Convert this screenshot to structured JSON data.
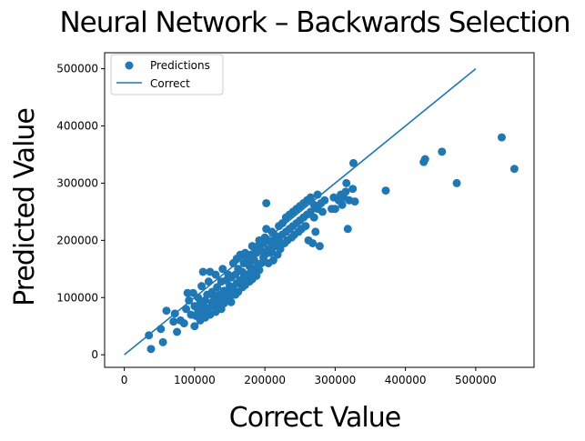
{
  "chart_data": {
    "type": "scatter",
    "title": "Neural Network – Backwards Selection",
    "xlabel": "Correct Value",
    "ylabel": "Predicted Value",
    "xlim": [
      -28000,
      583000
    ],
    "ylim": [
      -22000,
      528000
    ],
    "x_ticks": [
      0,
      100000,
      200000,
      300000,
      400000,
      500000
    ],
    "x_tick_labels": [
      "0",
      "100000",
      "200000",
      "300000",
      "400000",
      "500000"
    ],
    "y_ticks": [
      0,
      100000,
      200000,
      300000,
      400000,
      500000
    ],
    "y_tick_labels": [
      "0",
      "100000",
      "200000",
      "300000",
      "400000",
      "500000"
    ],
    "grid": false,
    "legend_position": "top-left",
    "colors": {
      "series": "#1f77b4"
    },
    "series": [
      {
        "name": "Predictions",
        "kind": "scatter",
        "points": [
          [
            35000,
            34000
          ],
          [
            38000,
            10000
          ],
          [
            52000,
            45000
          ],
          [
            55000,
            22000
          ],
          [
            60000,
            77000
          ],
          [
            70000,
            58000
          ],
          [
            72000,
            72000
          ],
          [
            75000,
            40000
          ],
          [
            80000,
            60000
          ],
          [
            85000,
            55000
          ],
          [
            88000,
            80000
          ],
          [
            90000,
            108000
          ],
          [
            92000,
            95000
          ],
          [
            95000,
            70000
          ],
          [
            98000,
            108000
          ],
          [
            100000,
            50000
          ],
          [
            100000,
            85000
          ],
          [
            102000,
            68000
          ],
          [
            105000,
            78000
          ],
          [
            105000,
            100000
          ],
          [
            108000,
            60000
          ],
          [
            108000,
            90000
          ],
          [
            110000,
            72000
          ],
          [
            110000,
            120000
          ],
          [
            112000,
            145000
          ],
          [
            112000,
            85000
          ],
          [
            115000,
            65000
          ],
          [
            115000,
            95000
          ],
          [
            118000,
            78000
          ],
          [
            118000,
            105000
          ],
          [
            120000,
            82000
          ],
          [
            120000,
            128000
          ],
          [
            122000,
            145000
          ],
          [
            122000,
            70000
          ],
          [
            125000,
            92000
          ],
          [
            125000,
            110000
          ],
          [
            128000,
            85000
          ],
          [
            128000,
            100000
          ],
          [
            130000,
            75000
          ],
          [
            130000,
            140000
          ],
          [
            132000,
            95000
          ],
          [
            132000,
            118000
          ],
          [
            135000,
            88000
          ],
          [
            135000,
            105000
          ],
          [
            138000,
            80000
          ],
          [
            138000,
            128000
          ],
          [
            140000,
            100000
          ],
          [
            140000,
            150000
          ],
          [
            142000,
            90000
          ],
          [
            142000,
            112000
          ],
          [
            145000,
            95000
          ],
          [
            145000,
            130000
          ],
          [
            148000,
            108000
          ],
          [
            148000,
            140000
          ],
          [
            150000,
            100000
          ],
          [
            150000,
            120000
          ],
          [
            152000,
            92000
          ],
          [
            152000,
            135000
          ],
          [
            155000,
            115000
          ],
          [
            155000,
            160000
          ],
          [
            158000,
            105000
          ],
          [
            158000,
            140000
          ],
          [
            160000,
            125000
          ],
          [
            160000,
            168000
          ],
          [
            162000,
            110000
          ],
          [
            162000,
            150000
          ],
          [
            165000,
            130000
          ],
          [
            165000,
            175000
          ],
          [
            168000,
            118000
          ],
          [
            168000,
            145000
          ],
          [
            170000,
            135000
          ],
          [
            170000,
            160000
          ],
          [
            172000,
            122000
          ],
          [
            172000,
            178000
          ],
          [
            175000,
            140000
          ],
          [
            175000,
            165000
          ],
          [
            178000,
            128000
          ],
          [
            178000,
            155000
          ],
          [
            180000,
            145000
          ],
          [
            180000,
            175000
          ],
          [
            182000,
            132000
          ],
          [
            182000,
            190000
          ],
          [
            185000,
            150000
          ],
          [
            185000,
            165000
          ],
          [
            188000,
            138000
          ],
          [
            188000,
            178000
          ],
          [
            190000,
            155000
          ],
          [
            190000,
            190000
          ],
          [
            192000,
            148000
          ],
          [
            192000,
            200000
          ],
          [
            195000,
            160000
          ],
          [
            195000,
            182000
          ],
          [
            198000,
            170000
          ],
          [
            198000,
            195000
          ],
          [
            200000,
            175000
          ],
          [
            200000,
            205000
          ],
          [
            202000,
            220000
          ],
          [
            202000,
            265000
          ],
          [
            205000,
            160000
          ],
          [
            205000,
            185000
          ],
          [
            208000,
            178000
          ],
          [
            208000,
            198000
          ],
          [
            210000,
            185000
          ],
          [
            210000,
            215000
          ],
          [
            212000,
            165000
          ],
          [
            212000,
            200000
          ],
          [
            215000,
            190000
          ],
          [
            215000,
            208000
          ],
          [
            218000,
            175000
          ],
          [
            218000,
            195000
          ],
          [
            220000,
            200000
          ],
          [
            220000,
            225000
          ],
          [
            222000,
            185000
          ],
          [
            225000,
            210000
          ],
          [
            225000,
            230000
          ],
          [
            228000,
            195000
          ],
          [
            230000,
            215000
          ],
          [
            230000,
            240000
          ],
          [
            232000,
            200000
          ],
          [
            235000,
            220000
          ],
          [
            235000,
            245000
          ],
          [
            238000,
            205000
          ],
          [
            240000,
            225000
          ],
          [
            240000,
            250000
          ],
          [
            242000,
            210000
          ],
          [
            245000,
            230000
          ],
          [
            245000,
            255000
          ],
          [
            248000,
            215000
          ],
          [
            250000,
            235000
          ],
          [
            250000,
            260000
          ],
          [
            252000,
            220000
          ],
          [
            255000,
            240000
          ],
          [
            255000,
            265000
          ],
          [
            258000,
            225000
          ],
          [
            260000,
            245000
          ],
          [
            260000,
            270000
          ],
          [
            262000,
            200000
          ],
          [
            265000,
            250000
          ],
          [
            265000,
            275000
          ],
          [
            268000,
            195000
          ],
          [
            270000,
            240000
          ],
          [
            270000,
            262000
          ],
          [
            272000,
            215000
          ],
          [
            275000,
            255000
          ],
          [
            275000,
            280000
          ],
          [
            278000,
            190000
          ],
          [
            280000,
            265000
          ],
          [
            282000,
            250000
          ],
          [
            285000,
            270000
          ],
          [
            295000,
            255000
          ],
          [
            298000,
            275000
          ],
          [
            300000,
            255000
          ],
          [
            305000,
            270000
          ],
          [
            308000,
            280000
          ],
          [
            310000,
            262000
          ],
          [
            312000,
            275000
          ],
          [
            315000,
            285000
          ],
          [
            316000,
            300000
          ],
          [
            318000,
            220000
          ],
          [
            320000,
            270000
          ],
          [
            325000,
            290000
          ],
          [
            326000,
            335000
          ],
          [
            328000,
            268000
          ],
          [
            372000,
            287000
          ],
          [
            426000,
            337000
          ],
          [
            428000,
            342000
          ],
          [
            452000,
            355000
          ],
          [
            473000,
            300000
          ],
          [
            537000,
            380000
          ],
          [
            555000,
            325000
          ]
        ]
      },
      {
        "name": "Correct",
        "kind": "line",
        "points": [
          [
            0,
            0
          ],
          [
            500000,
            500000
          ]
        ]
      }
    ]
  }
}
